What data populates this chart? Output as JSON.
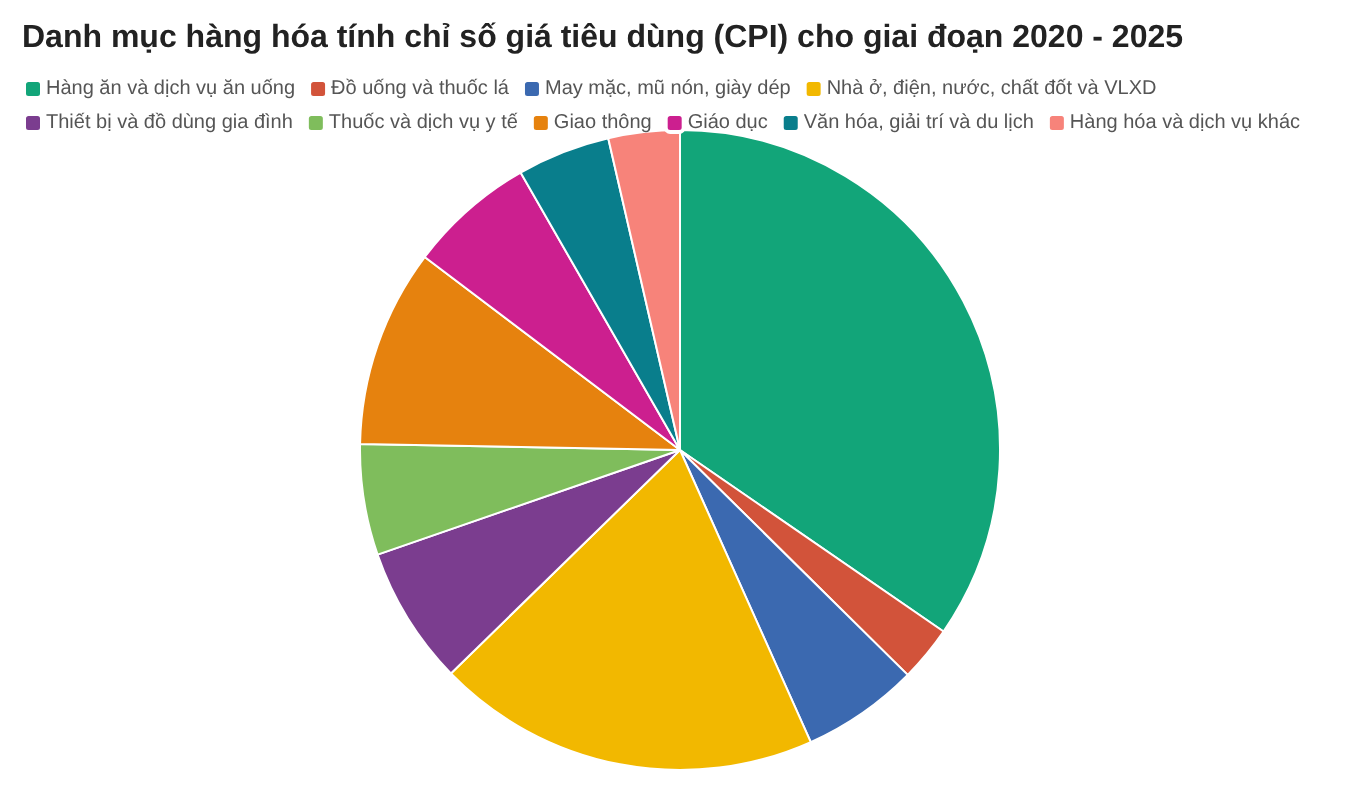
{
  "chart_data": {
    "type": "pie",
    "title": "Danh mục hàng hóa tính chỉ số giá tiêu dùng (CPI) cho giai đoạn 2020 - 2025",
    "categories": [
      "Hàng ăn và dịch vụ ăn uống",
      "Đồ uống và thuốc lá",
      "May mặc, mũ nón, giày dép",
      "Nhà ở, điện, nước, chất đốt và VLXD",
      "Thiết bị và đồ dùng gia đình",
      "Thuốc và dịch vụ y tế",
      "Giao thông",
      "Giáo dục",
      "Văn hóa, giải trí và du lịch",
      "Hàng hóa và dịch vụ khác"
    ],
    "values": [
      34.6,
      2.8,
      5.9,
      19.4,
      7.0,
      5.6,
      10.0,
      6.4,
      4.7,
      3.6
    ],
    "colors": [
      "#12a579",
      "#d2533a",
      "#3b69b0",
      "#f2b800",
      "#7b3d8f",
      "#7fbd5c",
      "#e6820e",
      "#cc1f8f",
      "#097e8c",
      "#f7837a"
    ],
    "legend": "top left"
  }
}
